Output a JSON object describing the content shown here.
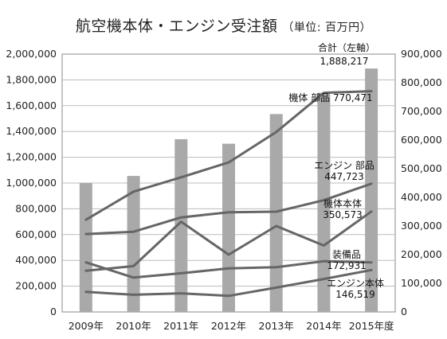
{
  "chart_data": {
    "type": "bar+line",
    "title": "航空機本体・エンジン受注額",
    "unit_note": "（単位: 百万円）",
    "categories": [
      "2009年",
      "2010年",
      "2011年",
      "2012年",
      "2013年",
      "2014年",
      "2015年度"
    ],
    "left_axis": {
      "ylim": [
        0,
        2000000
      ],
      "ticks": [
        "0",
        "200,000",
        "400,000",
        "600,000",
        "800,000",
        "1,000,000",
        "1,200,000",
        "1,400,000",
        "1,600,000",
        "1,800,000",
        "2,000,000"
      ]
    },
    "right_axis": {
      "ylim": [
        0,
        900000
      ],
      "ticks": [
        "0",
        "100,000",
        "200,000",
        "300,000",
        "400,000",
        "500,000",
        "600,000",
        "700,000",
        "800,000",
        "900,000"
      ]
    },
    "grid": "horizontal",
    "bar_series": {
      "name": "合計（左軸）",
      "axis": "left",
      "color": "#a9a9a9",
      "values": [
        1000000,
        1055000,
        1340000,
        1305000,
        1535000,
        1700000,
        1888217
      ]
    },
    "line_series": [
      {
        "name": "機体部品",
        "axis": "right",
        "color": "#666666",
        "values": [
          322000,
          420000,
          470000,
          522000,
          628000,
          765000,
          770471
        ]
      },
      {
        "name": "エンジン部品",
        "axis": "right",
        "color": "#666666",
        "values": [
          272000,
          280000,
          330000,
          348000,
          350000,
          390000,
          447723
        ]
      },
      {
        "name": "機体本体",
        "axis": "right",
        "color": "#666666",
        "values": [
          144000,
          160000,
          315000,
          200000,
          300000,
          232000,
          350573
        ]
      },
      {
        "name": "装備品",
        "axis": "right",
        "color": "#666666",
        "values": [
          173000,
          120000,
          135000,
          152000,
          156000,
          177000,
          172931
        ]
      },
      {
        "name": "エンジン本体",
        "axis": "right",
        "color": "#666666",
        "values": [
          70000,
          60000,
          65000,
          56000,
          85000,
          115000,
          146519
        ]
      }
    ],
    "annotations": [
      {
        "text": "合計（左軸）",
        "value": ""
      },
      {
        "text": "",
        "value": "1,888,217"
      },
      {
        "text": "機体 部品",
        "value": "770,471"
      },
      {
        "text": "エンジン 部品",
        "value": "447,723"
      },
      {
        "text": "機体本体",
        "value": "350,573"
      },
      {
        "text": "装備品",
        "value": "172,931"
      },
      {
        "text": "エンジン本体",
        "value": "146,519"
      }
    ]
  }
}
